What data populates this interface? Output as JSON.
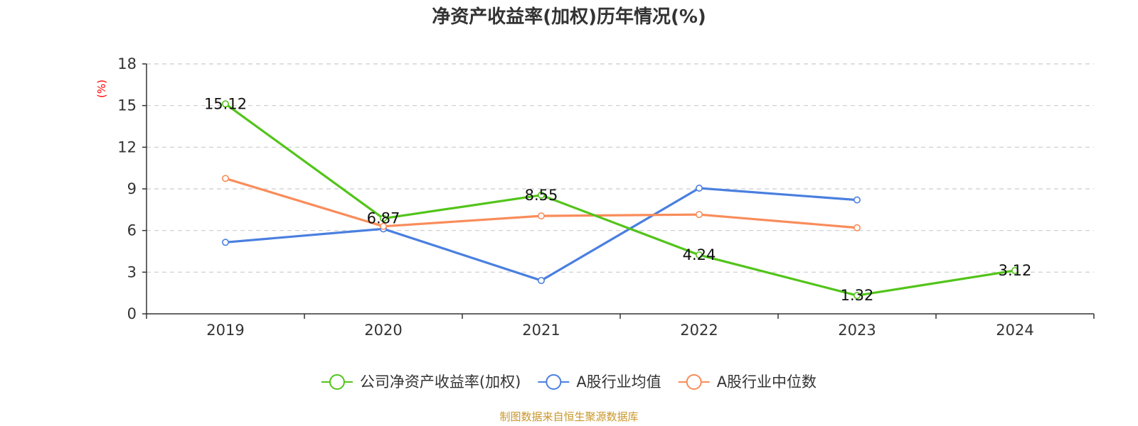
{
  "chart_data": {
    "type": "line",
    "title": "净资产收益率(加权)历年情况(%)",
    "ylabel": "(%)",
    "xlabel": "",
    "categories": [
      "2019",
      "2020",
      "2021",
      "2022",
      "2023",
      "2024"
    ],
    "ylim": [
      0,
      18
    ],
    "yticks": [
      0,
      3,
      6,
      9,
      12,
      15,
      18
    ],
    "grid": true,
    "legend_position": "bottom",
    "series": [
      {
        "name": "公司净资产收益率(加权)",
        "color": "#52c41a",
        "values": [
          15.12,
          6.87,
          8.55,
          4.24,
          1.32,
          3.12
        ],
        "labels": [
          "15.12",
          "6.87",
          "8.55",
          "4.24",
          "1.32",
          "3.12"
        ]
      },
      {
        "name": "A股行业均值",
        "color": "#4a7fe0",
        "values": [
          5.15,
          6.12,
          2.4,
          9.05,
          8.2,
          null
        ]
      },
      {
        "name": "A股行业中位数",
        "color": "#f98c5a",
        "values": [
          9.75,
          6.3,
          7.05,
          7.15,
          6.2,
          null
        ]
      }
    ],
    "source": "制图数据来自恒生聚源数据库",
    "colors": {
      "ylabel": "#ff0000",
      "source": "#c8972a",
      "axis": "#333333",
      "grid": "#cccccc"
    }
  }
}
